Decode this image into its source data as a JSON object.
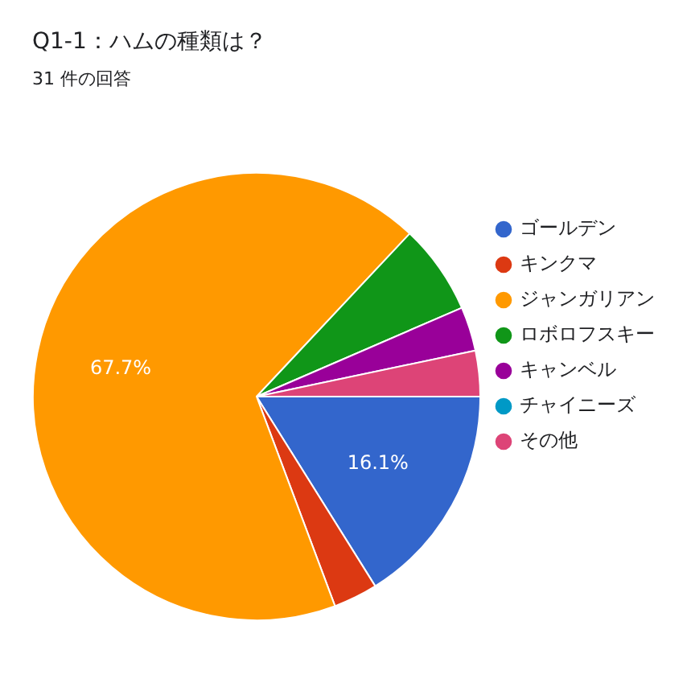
{
  "chart_data": {
    "type": "pie",
    "title": "Q1-1：ハムの種類は？",
    "subtitle": "31 件の回答",
    "categories": [
      "ゴールデン",
      "キンクマ",
      "ジャンガリアン",
      "ロボロフスキー",
      "キャンベル",
      "チャイニーズ",
      "その他"
    ],
    "values": [
      16.1,
      3.2,
      67.7,
      6.5,
      3.2,
      0,
      3.3
    ],
    "colors": [
      "#3366cc",
      "#dc3912",
      "#ff9900",
      "#109618",
      "#990099",
      "#0099c6",
      "#dd4477"
    ],
    "value_labels": [
      "16.1%",
      null,
      "67.7%",
      null,
      null,
      null,
      null
    ],
    "legend": "right"
  }
}
